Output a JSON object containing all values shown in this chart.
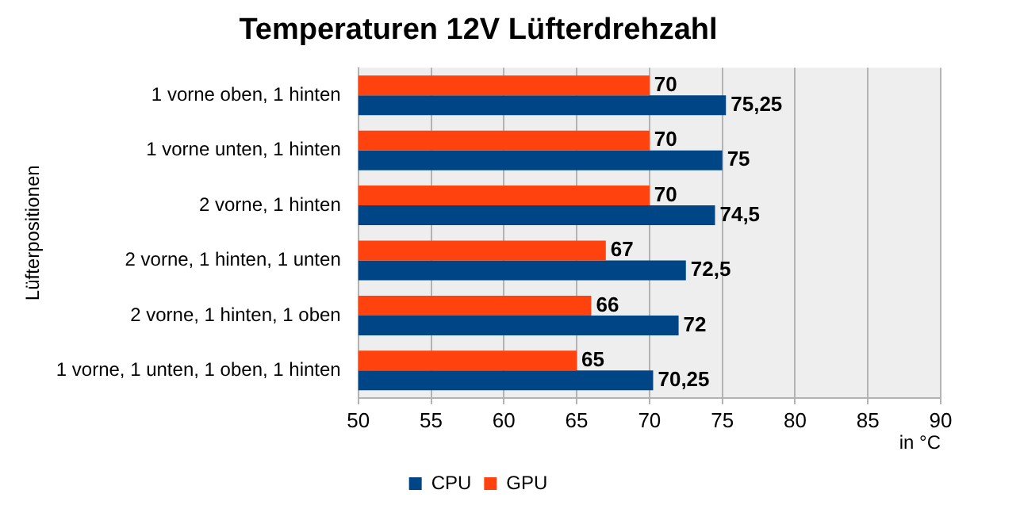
{
  "chart_data": {
    "type": "bar",
    "orientation": "horizontal",
    "title": "Temperaturen 12V Lüfterdrehzahl",
    "xlabel": "in °C",
    "ylabel": "Lüfterpositionen",
    "categories": [
      "1 vorne oben, 1 hinten",
      "1 vorne unten, 1 hinten",
      "2 vorne, 1 hinten",
      "2 vorne, 1 hinten, 1 unten",
      "2 vorne, 1 hinten, 1 oben",
      "1 vorne, 1 unten, 1 oben, 1 hinten"
    ],
    "series": [
      {
        "name": "GPU",
        "color": "#ff420e",
        "values": [
          70,
          70,
          70,
          67,
          66,
          65
        ],
        "value_labels": [
          "70",
          "70",
          "70",
          "67",
          "66",
          "65"
        ]
      },
      {
        "name": "CPU",
        "color": "#004586",
        "values": [
          75.25,
          75,
          74.5,
          72.5,
          72,
          70.25
        ],
        "value_labels": [
          "75,25",
          "75",
          "74,5",
          "72,5",
          "72",
          "70,25"
        ]
      }
    ],
    "xlim": [
      50,
      90
    ],
    "xticks": [
      50,
      55,
      60,
      65,
      70,
      75,
      80,
      85,
      90
    ],
    "grid": "x",
    "legend": "bottom"
  }
}
